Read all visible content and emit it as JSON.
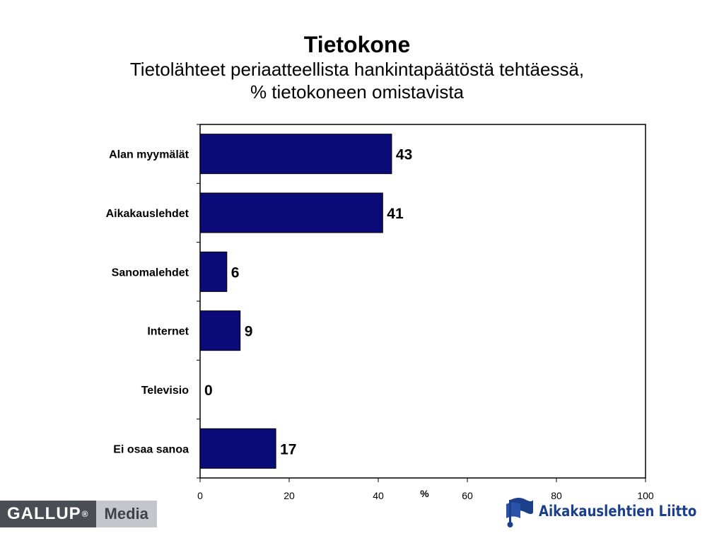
{
  "header": {
    "title": "Tietokone",
    "subtitle_line1": "Tietolähteet periaatteellista hankintapäätöstä tehtäessä,",
    "subtitle_line2": "% tietokoneen omistavista"
  },
  "chart_data": {
    "type": "bar",
    "orientation": "horizontal",
    "categories": [
      "Alan myymälät",
      "Aikakauslehdet",
      "Sanomalehdet",
      "Internet",
      "Televisio",
      "Ei osaa sanoa"
    ],
    "values": [
      43,
      41,
      6,
      9,
      0,
      17
    ],
    "xlabel": "%",
    "xlim": [
      0,
      100
    ],
    "xticks": [
      0,
      20,
      40,
      60,
      80,
      100
    ],
    "grid": false,
    "data_labels": true,
    "bar_color": "#0a0a78"
  },
  "footer": {
    "gallup_text": "GALLUP",
    "gallup_reg": "®",
    "media_text": "Media",
    "partner_text": "Aikakauslehtien Liitto",
    "partner_color": "#1c3f8c"
  }
}
